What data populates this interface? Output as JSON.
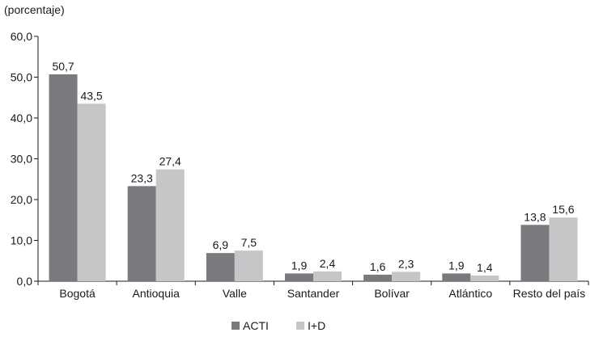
{
  "chart_data": {
    "type": "bar",
    "unit_label": "(porcentaje)",
    "categories": [
      "Bogotá",
      "Antioquia",
      "Valle",
      "Santander",
      "Bolívar",
      "Atlántico",
      "Resto del país"
    ],
    "series": [
      {
        "name": "ACTI",
        "values": [
          50.7,
          23.3,
          6.9,
          1.9,
          1.6,
          1.9,
          13.8
        ],
        "labels": [
          "50,7",
          "23,3",
          "6,9",
          "1,9",
          "1,6",
          "1,9",
          "13,8"
        ],
        "color": "#7a7a7e"
      },
      {
        "name": "I+D",
        "values": [
          43.5,
          27.4,
          7.5,
          2.4,
          2.3,
          1.4,
          15.6
        ],
        "labels": [
          "43,5",
          "27,4",
          "7,5",
          "2,4",
          "2,3",
          "1,4",
          "15,6"
        ],
        "color": "#c6c6c8"
      }
    ],
    "yticks": [
      0,
      10,
      20,
      30,
      40,
      50,
      60
    ],
    "ytick_labels": [
      "0,0",
      "10,0",
      "20,0",
      "30,0",
      "40,0",
      "50,0",
      "60,0"
    ],
    "ylim": [
      0,
      60
    ],
    "grid": false,
    "legend": "bottom-center"
  }
}
